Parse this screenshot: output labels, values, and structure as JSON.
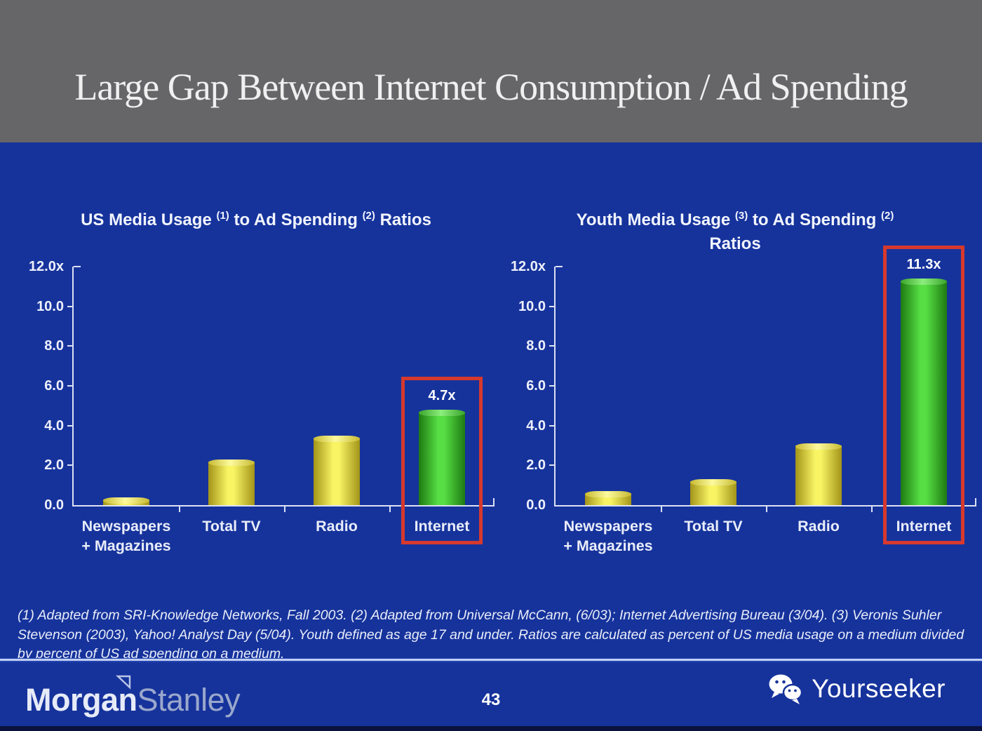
{
  "slide": {
    "title": "Large Gap Between Internet Consumption / Ad Spending",
    "page_number": "43",
    "footnote": "(1) Adapted from SRI-Knowledge Networks, Fall 2003.  (2) Adapted from Universal McCann, (6/03); Internet Advertising Bureau (3/04). (3) Veronis Suhler Stevenson (2003), Yahoo! Analyst Day (5/04).  Youth defined as age 17 and under.  Ratios are calculated as percent of US media usage on a medium divided by percent of US ad spending on a medium."
  },
  "footer": {
    "brand_part1": "Morgan",
    "brand_part2": "Stanley",
    "brand_right": "Yourseeker"
  },
  "colors": {
    "header_gray": "#666668",
    "slide_blue": "#16339c",
    "axis_line": "#dbe1f3",
    "axis_text": "#eef1fb",
    "bar_yellow_edge": "#a39419",
    "bar_yellow_center": "#f8f464",
    "bar_yellow_cap": "#fdfa9e",
    "bar_green_edge": "#1e7a12",
    "bar_green_center": "#57de44",
    "bar_green_cap": "#8cee7c",
    "highlight_red": "#d6392d"
  },
  "chart_data": [
    {
      "type": "bar",
      "title": "US Media Usage (1) to Ad Spending (2) Ratios",
      "title_parts": [
        {
          "text": "US Media Usage "
        },
        {
          "text": "(1)",
          "sup": true
        },
        {
          "text": " to Ad Spending "
        },
        {
          "text": "(2)",
          "sup": true
        },
        {
          "text": " Ratios"
        }
      ],
      "categories": [
        [
          "Newspapers",
          "+ Magazines"
        ],
        [
          "Total TV"
        ],
        [
          "Radio"
        ],
        [
          "Internet"
        ]
      ],
      "values": [
        0.3,
        2.2,
        3.4,
        4.7
      ],
      "bar_color_keys": [
        "yellow",
        "yellow",
        "yellow",
        "green"
      ],
      "value_labels": [
        "",
        "",
        "",
        "4.7x"
      ],
      "highlight_index": 3,
      "xlabel": "",
      "ylabel": "",
      "ylim": [
        0,
        12
      ],
      "yticks": [
        {
          "label": "12.0x",
          "value": 12
        },
        {
          "label": "10.0",
          "value": 10
        },
        {
          "label": "8.0",
          "value": 8
        },
        {
          "label": "6.0",
          "value": 6
        },
        {
          "label": "4.0",
          "value": 4
        },
        {
          "label": "2.0",
          "value": 2
        },
        {
          "label": "0.0",
          "value": 0
        }
      ],
      "grid": false,
      "legend": "none"
    },
    {
      "type": "bar",
      "title": "Youth Media Usage (3) to Ad Spending (2) Ratios",
      "title_parts": [
        {
          "text": "Youth Media Usage "
        },
        {
          "text": "(3)",
          "sup": true
        },
        {
          "text": " to Ad Spending "
        },
        {
          "text": "(2)",
          "sup": true
        },
        {
          "text": "Ratios",
          "line": 2
        }
      ],
      "categories": [
        [
          "Newspapers",
          "+ Magazines"
        ],
        [
          "Total TV"
        ],
        [
          "Radio"
        ],
        [
          "Internet"
        ]
      ],
      "values": [
        0.6,
        1.2,
        3.0,
        11.3
      ],
      "bar_color_keys": [
        "yellow",
        "yellow",
        "yellow",
        "green"
      ],
      "value_labels": [
        "",
        "",
        "",
        "11.3x"
      ],
      "highlight_index": 3,
      "xlabel": "",
      "ylabel": "",
      "ylim": [
        0,
        12
      ],
      "yticks": [
        {
          "label": "12.0x",
          "value": 12
        },
        {
          "label": "10.0",
          "value": 10
        },
        {
          "label": "8.0",
          "value": 8
        },
        {
          "label": "6.0",
          "value": 6
        },
        {
          "label": "4.0",
          "value": 4
        },
        {
          "label": "2.0",
          "value": 2
        },
        {
          "label": "0.0",
          "value": 0
        }
      ],
      "grid": false,
      "legend": "none"
    }
  ]
}
